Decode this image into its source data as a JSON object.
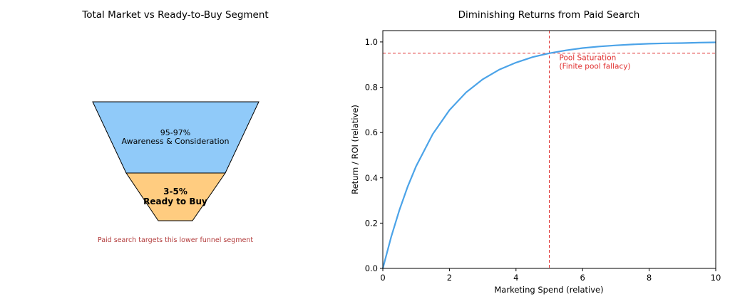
{
  "chart_data": [
    {
      "type": "funnel",
      "title": "Total Market vs Ready-to-Buy Segment",
      "segments": [
        {
          "percent_label": "95-97%",
          "name": "Awareness & Consideration",
          "color": "#90CAF9"
        },
        {
          "percent_label": "3-5%",
          "name": "Ready to Buy",
          "color": "#FFCC80"
        }
      ],
      "annotation": {
        "text": "Paid search targets this lower funnel segment",
        "color": "#B23A3A"
      }
    },
    {
      "type": "line",
      "title": "Diminishing Returns from Paid Search",
      "xlabel": "Marketing Spend (relative)",
      "ylabel": "Return / ROI (relative)",
      "xlim": [
        0,
        10
      ],
      "ylim": [
        0,
        1.05
      ],
      "xticks": [
        0,
        2,
        4,
        6,
        8,
        10
      ],
      "yticks": [
        0.0,
        0.2,
        0.4,
        0.6,
        0.8,
        1.0
      ],
      "ytick_labels": [
        "0.0",
        "0.2",
        "0.4",
        "0.6",
        "0.8",
        "1.0"
      ],
      "grid": false,
      "series": [
        {
          "color": "#4BA3E8",
          "x": [
            0,
            0.25,
            0.5,
            0.75,
            1,
            1.5,
            2,
            2.5,
            3,
            3.5,
            4,
            4.5,
            5,
            5.5,
            6,
            6.5,
            7,
            7.5,
            8,
            8.5,
            9,
            9.5,
            10
          ],
          "y": [
            0,
            0.139,
            0.259,
            0.362,
            0.451,
            0.593,
            0.699,
            0.777,
            0.835,
            0.878,
            0.909,
            0.933,
            0.95,
            0.963,
            0.973,
            0.98,
            0.985,
            0.989,
            0.992,
            0.994,
            0.995,
            0.997,
            0.998
          ]
        }
      ],
      "reference_lines": [
        {
          "orientation": "vertical",
          "value": 5,
          "color": "#E03030",
          "style": "dashed"
        },
        {
          "orientation": "horizontal",
          "value": 0.95,
          "color": "#E03030",
          "style": "dashed"
        }
      ],
      "annotation": {
        "lines": [
          "Pool Saturation",
          "(Finite pool fallacy)"
        ],
        "x": 5.3,
        "y": 0.9,
        "color": "#E03030"
      }
    }
  ]
}
